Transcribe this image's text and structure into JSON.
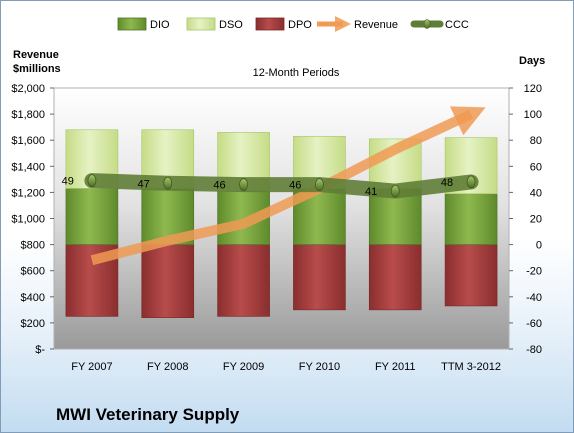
{
  "company": "MWI Veterinary Supply",
  "chart_data": {
    "type": "bar",
    "title": "12-Month Periods",
    "categories": [
      "FY 2007",
      "FY 2008",
      "FY 2009",
      "FY 2010",
      "FY 2011",
      "TTM 3-2012"
    ],
    "left_axis": {
      "label_line1": "Revenue",
      "label_line2": "$millions",
      "ylim": [
        0,
        2000
      ],
      "ticks": [
        {
          "v": 2000,
          "t": "$2,000"
        },
        {
          "v": 1800,
          "t": "$1,800"
        },
        {
          "v": 1600,
          "t": "$1,600"
        },
        {
          "v": 1400,
          "t": "$1,400"
        },
        {
          "v": 1200,
          "t": "$1,200"
        },
        {
          "v": 1000,
          "t": "$1,000"
        },
        {
          "v": 800,
          "t": "$800"
        },
        {
          "v": 600,
          "t": "$600"
        },
        {
          "v": 400,
          "t": "$400"
        },
        {
          "v": 200,
          "t": "$200"
        },
        {
          "v": 0,
          "t": "$-"
        }
      ]
    },
    "right_axis": {
      "label": "Days",
      "ylim": [
        -80,
        120
      ],
      "ticks": [
        {
          "v": 120,
          "t": "120"
        },
        {
          "v": 100,
          "t": "100"
        },
        {
          "v": 80,
          "t": "80"
        },
        {
          "v": 60,
          "t": "60"
        },
        {
          "v": 40,
          "t": "40"
        },
        {
          "v": 20,
          "t": "20"
        },
        {
          "v": 0,
          "t": "0"
        },
        {
          "v": -20,
          "t": "-20"
        },
        {
          "v": -40,
          "t": "-40"
        },
        {
          "v": -60,
          "t": "-60"
        },
        {
          "v": -80,
          "t": "-80"
        }
      ]
    },
    "series": [
      {
        "name": "DIO",
        "axis": "right",
        "kind": "stacked-bar",
        "values": [
          43,
          43,
          41,
          43,
          43,
          39
        ],
        "color": "#79a33e"
      },
      {
        "name": "DSO",
        "axis": "right",
        "kind": "stacked-bar",
        "values": [
          45,
          45,
          45,
          40,
          38,
          43
        ],
        "color": "#d7e9a9"
      },
      {
        "name": "DPO",
        "axis": "right",
        "kind": "negative-bar",
        "values": [
          -55,
          -56,
          -55,
          -50,
          -50,
          -47
        ],
        "color": "#a03c3c"
      },
      {
        "name": "Revenue",
        "axis": "left",
        "kind": "line",
        "values": [
          680,
          830,
          960,
          1230,
          1530,
          1800
        ],
        "color": "#f09a53"
      },
      {
        "name": "CCC",
        "axis": "right",
        "kind": "line",
        "values": [
          49,
          47,
          46,
          46,
          41,
          48
        ],
        "color": "#5f7d36"
      }
    ],
    "ccc_labels": [
      "49",
      "47",
      "46",
      "46",
      "41",
      "48"
    ],
    "legend_position": "top",
    "grid": false
  }
}
